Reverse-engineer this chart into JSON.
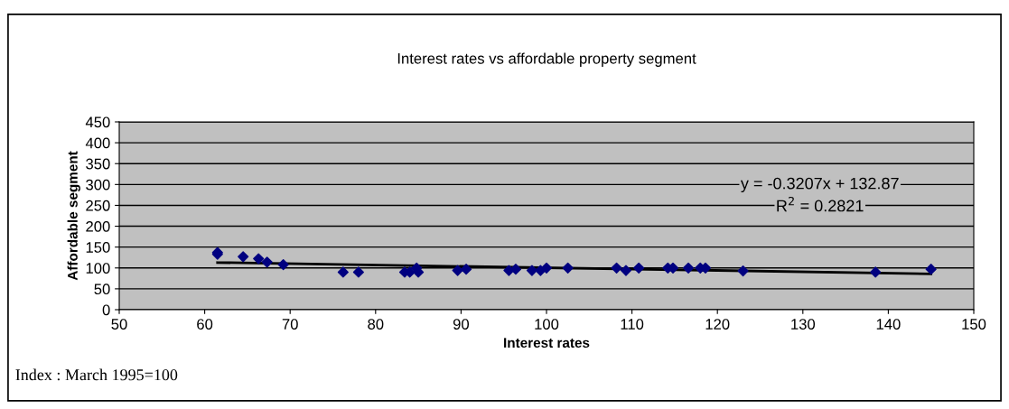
{
  "chart_data": {
    "type": "scatter",
    "title": "Interest rates vs affordable property segment",
    "xlabel": "Interest rates",
    "ylabel": "Affordable segment",
    "xlim": [
      50,
      150
    ],
    "xticks": [
      50,
      60,
      70,
      80,
      90,
      100,
      110,
      120,
      130,
      140,
      150
    ],
    "ylim": [
      0,
      450
    ],
    "yticks": [
      0,
      50,
      100,
      150,
      200,
      250,
      300,
      350,
      400,
      450
    ],
    "grid": "y",
    "marker": "diamond",
    "legend": false,
    "series": [
      {
        "color": "#000080",
        "x": [
          61.5,
          61.5,
          64.5,
          66.3,
          67.3,
          69.2,
          76.2,
          78.0,
          83.4,
          84.0,
          84.8,
          85.0,
          89.6,
          90.6,
          95.6,
          96.4,
          98.3,
          99.3,
          100.0,
          102.5,
          108.2,
          109.3,
          110.8,
          114.2,
          114.8,
          116.6,
          118.0,
          118.6,
          123.0,
          138.5,
          145.0
        ],
        "values": [
          137,
          133,
          127,
          122,
          114,
          108,
          90,
          90,
          90,
          90,
          100,
          90,
          94,
          97,
          94,
          97,
          94,
          94,
          100,
          100,
          100,
          94,
          100,
          100,
          100,
          100,
          100,
          100,
          93,
          90,
          97
        ]
      },
      {
        "type": "line",
        "marker": "none",
        "color": "#000000",
        "x": [
          61.5,
          145.0
        ],
        "values": [
          113,
          86
        ]
      }
    ],
    "annotations": [
      "y = -0.3207x + 132.87",
      "R$^{2}$ = 0.2821",
      "Index : March 1995=100"
    ]
  }
}
